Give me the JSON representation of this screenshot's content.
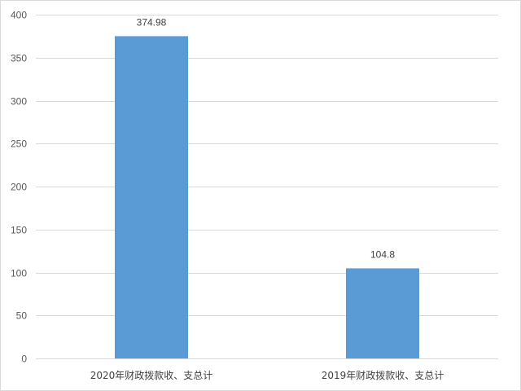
{
  "chart_data": {
    "type": "bar",
    "title": "",
    "xlabel": "",
    "ylabel": "",
    "categories": [
      "2020年财政拨款收、支总计",
      "2019年财政拨款收、支总计"
    ],
    "values": [
      374.98,
      104.8
    ],
    "data_labels": [
      "374.98",
      "104.8"
    ],
    "ylim": [
      0,
      400
    ],
    "yticks": [
      0,
      50,
      100,
      150,
      200,
      250,
      300,
      350,
      400
    ],
    "grid": true,
    "legend": "none",
    "bar_color": "#5b9bd5",
    "grid_color": "#d9d9d9"
  }
}
